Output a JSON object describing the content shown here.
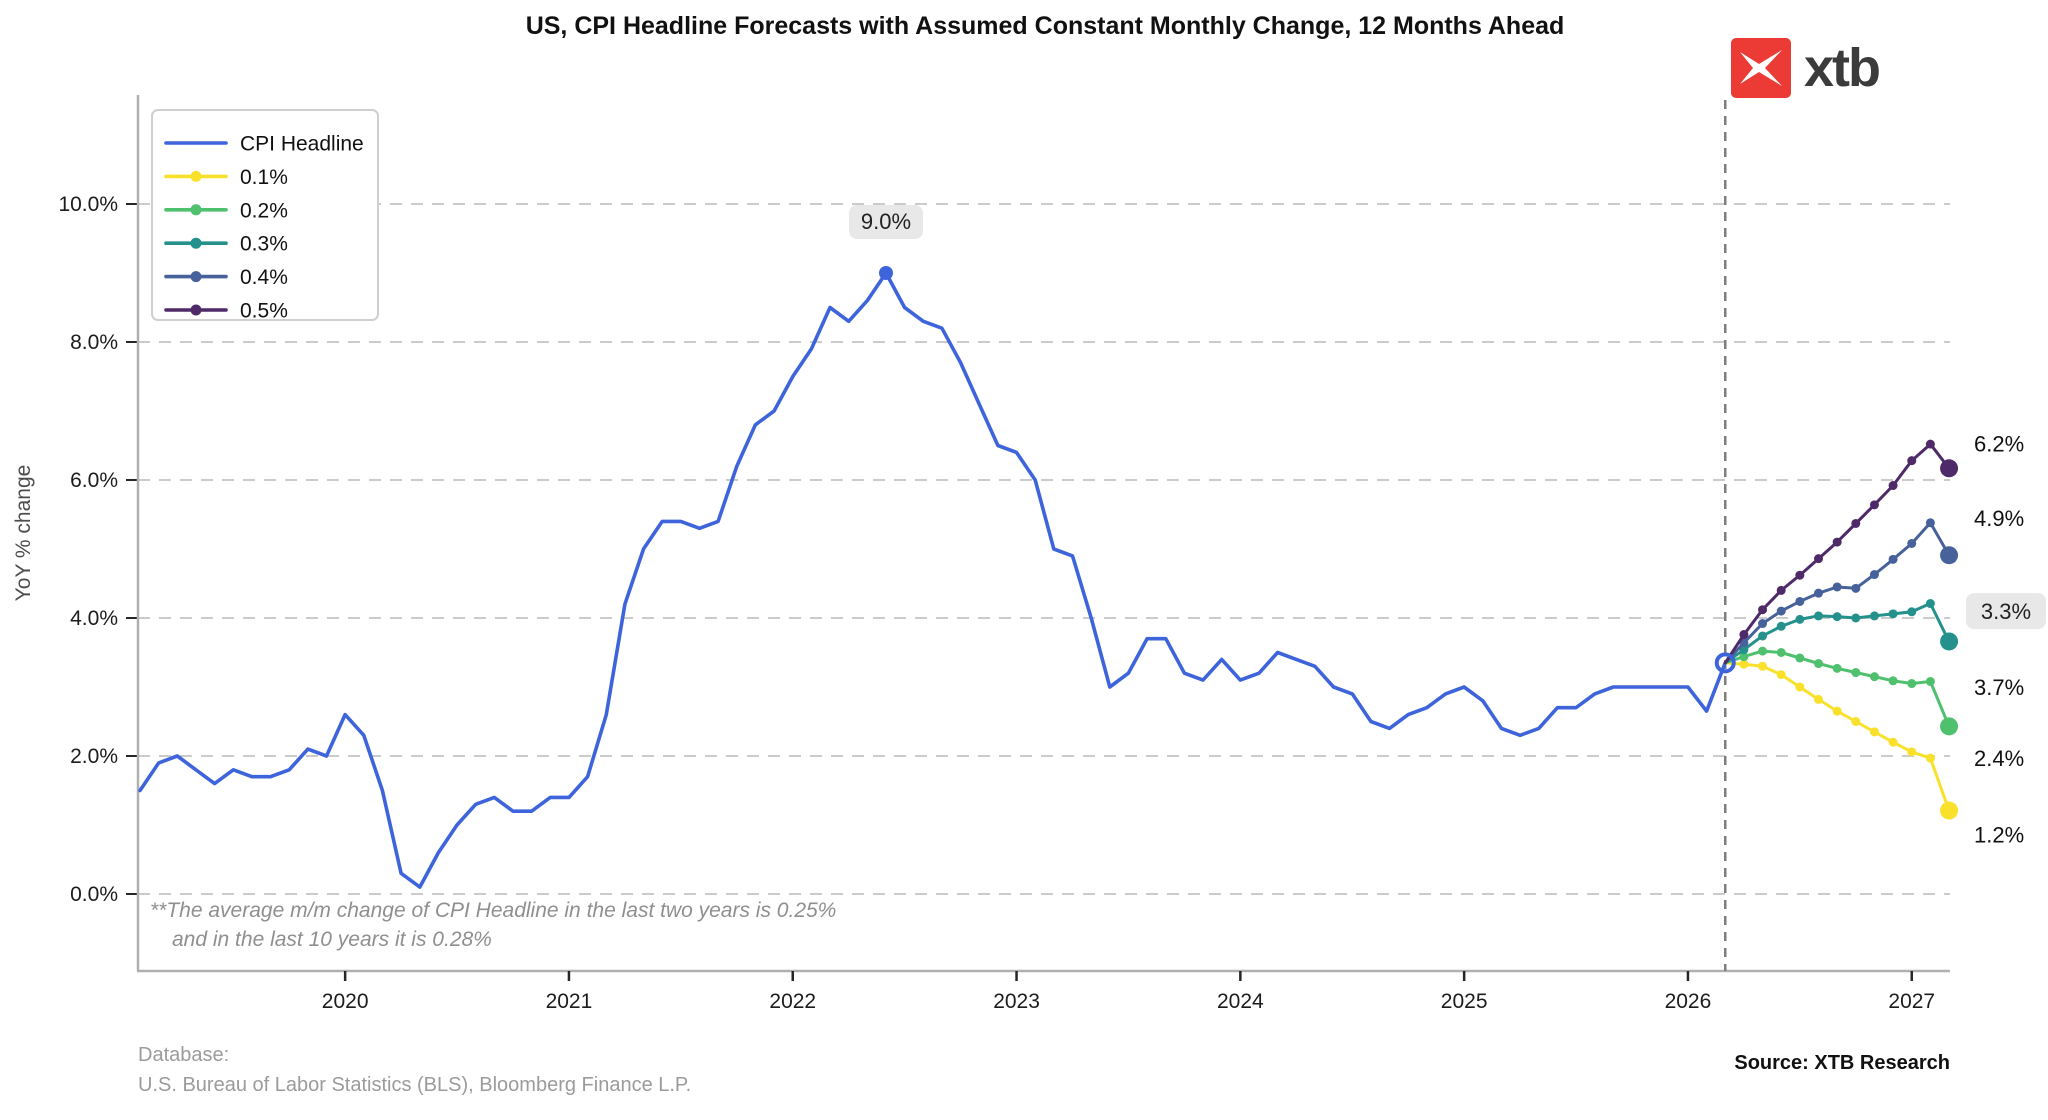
{
  "title": "US, CPI Headline Forecasts with Assumed Constant Monthly Change, 12 Months Ahead",
  "logo": {
    "brand": "xtb",
    "color": "#ec3b34"
  },
  "footnote": {
    "line1": "**The average m/m change of CPI Headline in the last two years is 0.25%",
    "line2": "and in the last 10 years it is 0.28%"
  },
  "footer": {
    "database_label": "Database:",
    "database_value": "U.S. Bureau of Labor Statistics (BLS), Bloomberg Finance L.P.",
    "source": "Source: XTB Research"
  },
  "chart_data": {
    "type": "line",
    "ylabel": "YoY % change",
    "x_start_month": "2019-02",
    "months_per_point": 1,
    "grid": "horizontal-dashed",
    "legend_position": "upper-left",
    "y_ticks": [
      {
        "v": 0,
        "label": "0.0%"
      },
      {
        "v": 2,
        "label": "2.0%"
      },
      {
        "v": 4,
        "label": "4.0%"
      },
      {
        "v": 6,
        "label": "6.0%"
      },
      {
        "v": 8,
        "label": "8.0%"
      },
      {
        "v": 10,
        "label": "10.0%"
      }
    ],
    "x_ticks": [
      {
        "year": 2020,
        "label": "2020"
      },
      {
        "year": 2021,
        "label": "2021"
      },
      {
        "year": 2022,
        "label": "2022"
      },
      {
        "year": 2023,
        "label": "2023"
      },
      {
        "year": 2024,
        "label": "2024"
      },
      {
        "year": 2025,
        "label": "2025"
      },
      {
        "year": 2026,
        "label": "2026"
      },
      {
        "year": 2027,
        "label": "2027"
      }
    ],
    "actual": {
      "name": "CPI Headline",
      "color": "#3e64dc",
      "values": [
        1.5,
        1.9,
        2.0,
        1.8,
        1.6,
        1.8,
        1.7,
        1.7,
        1.8,
        2.1,
        2.0,
        2.6,
        2.3,
        1.5,
        0.3,
        0.1,
        0.6,
        1.0,
        1.3,
        1.4,
        1.2,
        1.2,
        1.4,
        1.4,
        1.7,
        2.6,
        4.2,
        5.0,
        5.4,
        5.4,
        5.3,
        5.4,
        6.2,
        6.8,
        7.0,
        7.5,
        7.9,
        8.5,
        8.3,
        8.6,
        9.0,
        8.5,
        8.3,
        8.2,
        7.7,
        7.1,
        6.5,
        6.4,
        6.0,
        5.0,
        4.9,
        4.0,
        3.0,
        3.2,
        3.7,
        3.7,
        3.2,
        3.1,
        3.4,
        3.1,
        3.2,
        3.5,
        3.4,
        3.3,
        3.0,
        2.9,
        2.5,
        2.4,
        2.6,
        2.7,
        2.9,
        3.0,
        2.8,
        2.4,
        2.3,
        2.4,
        2.7,
        2.7,
        2.9,
        3.0,
        3.0,
        3.0,
        3.0,
        3.0,
        2.65,
        3.35
      ]
    },
    "forecast_start_index": 85,
    "forecast_vline_month_index": 85,
    "forecasts": [
      {
        "name": "0.1%",
        "color": "#f9e12b",
        "values": [
          3.35,
          3.33,
          3.3,
          3.18,
          3.0,
          2.82,
          2.65,
          2.5,
          2.35,
          2.2,
          2.06,
          1.97,
          1.21
        ]
      },
      {
        "name": "0.2%",
        "color": "#4fc06d",
        "values": [
          3.35,
          3.44,
          3.52,
          3.5,
          3.42,
          3.34,
          3.27,
          3.21,
          3.15,
          3.09,
          3.05,
          3.08,
          2.43
        ]
      },
      {
        "name": "0.3%",
        "color": "#24918c",
        "values": [
          3.35,
          3.54,
          3.74,
          3.88,
          3.98,
          4.03,
          4.02,
          4.0,
          4.03,
          4.06,
          4.09,
          4.21,
          3.66
        ]
      },
      {
        "name": "0.4%",
        "color": "#47619a",
        "values": [
          3.35,
          3.64,
          3.92,
          4.1,
          4.24,
          4.36,
          4.45,
          4.43,
          4.63,
          4.85,
          5.08,
          5.38,
          4.91
        ]
      },
      {
        "name": "0.5%",
        "color": "#4e2a68",
        "values": [
          3.35,
          3.76,
          4.12,
          4.4,
          4.62,
          4.86,
          5.1,
          5.37,
          5.64,
          5.92,
          6.28,
          6.52,
          6.17
        ]
      }
    ],
    "legend": [
      {
        "label": "CPI Headline",
        "color": "#3e64dc",
        "marker": false
      },
      {
        "label": "0.1%",
        "color": "#f9e12b",
        "marker": true
      },
      {
        "label": "0.2%",
        "color": "#4fc06d",
        "marker": true
      },
      {
        "label": "0.3%",
        "color": "#24918c",
        "marker": true
      },
      {
        "label": "0.4%",
        "color": "#47619a",
        "marker": true
      },
      {
        "label": "0.5%",
        "color": "#4e2a68",
        "marker": true
      }
    ],
    "peak_annotation": {
      "label": "9.0%",
      "month_index": 40,
      "value": 9.0
    },
    "last_actual_value": 3.35,
    "right_labels": [
      {
        "label": "6.2%",
        "at_value": 6.53,
        "boxed": false
      },
      {
        "label": "4.9%",
        "at_value": 5.45,
        "boxed": false
      },
      {
        "label": "3.3%",
        "at_value": 4.1,
        "boxed": true
      },
      {
        "label": "3.7%",
        "at_value": 3.0,
        "boxed": false
      },
      {
        "label": "2.4%",
        "at_value": 1.97,
        "boxed": false
      },
      {
        "label": "1.2%",
        "at_value": 0.86,
        "boxed": false
      }
    ],
    "colors": {
      "gridline": "#cbcbcb",
      "spine": "#b0b0b0",
      "tick": "#262626",
      "vline": "#7d7d7d",
      "annotation_bg": "#e8e8e8",
      "tick_label": "#1c1c1c",
      "ylabel": "#4d4d4d"
    }
  }
}
